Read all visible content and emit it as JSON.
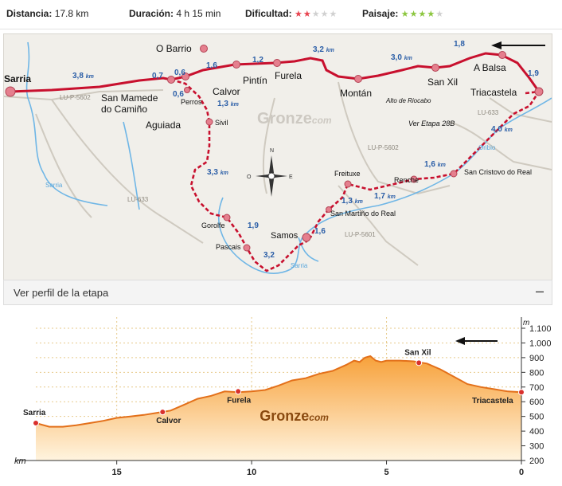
{
  "stats": {
    "distance_label": "Distancia:",
    "distance_value": "17.8 km",
    "duration_label": "Duración:",
    "duration_value": "4 h 15 min",
    "difficulty_label": "Dificultad:",
    "difficulty_rating": 2,
    "landscape_label": "Paisaje:",
    "landscape_rating": 4,
    "max_rating": 5,
    "difficulty_color": "#e8434f",
    "landscape_color": "#8cc63f",
    "empty_star_color": "#d0d0d0"
  },
  "map": {
    "watermark": "Gronze",
    "watermark_suffix": "com",
    "places": {
      "sarria": "Sarria",
      "obarrio": "O Barrio",
      "sanmamede1": "San Mamede",
      "sanmamede2": "do Camiño",
      "aguiada": "Aguiada",
      "perros": "Perros",
      "calvor": "Calvor",
      "pintin": "Pintín",
      "furela": "Furela",
      "montan": "Montán",
      "sanxil": "San Xil",
      "abalsa": "A Balsa",
      "triacastela": "Triacastela",
      "altoriocabo": "Alto de Riocabo",
      "sivil": "Sivil",
      "gorolfe": "Gorolfe",
      "pascais": "Pascais",
      "samos": "Samos",
      "freituxe": "Freituxe",
      "sanmartino": "San Martiño do Real",
      "renche": "Renche",
      "sancristovo": "San Cristovo do Real",
      "veretapa": "Ver Etapa 28B"
    },
    "roads": {
      "lup5602a": "LU-P-5602",
      "lup5602b": "LU-P-5602",
      "lu633a": "LU-633",
      "lu633b": "LU-633",
      "lup5601": "LU-P-5601"
    },
    "rivers": {
      "sarria1": "Sarria",
      "sarria2": "Sarria",
      "oribio": "Oribio"
    },
    "distances": {
      "d1": "3,8",
      "d2": "0,7",
      "d3": "0,6",
      "d4": "1,6",
      "d5": "1,2",
      "d6": "3,2",
      "d7": "3,0",
      "d8": "1,8",
      "d9": "1,9",
      "d10": "4,0",
      "d11": "1,6",
      "d12": "1,7",
      "d13": "1,3",
      "d14": "1,6",
      "d15": "3,2",
      "d16": "1,9",
      "d17": "3,3",
      "d18": "1,3",
      "d19": "0,6"
    },
    "km_unit": "km",
    "compass": {
      "n": "N",
      "e": "E",
      "s": "S",
      "o": "O"
    },
    "route_color": "#c8102e",
    "river_color": "#6fb6e6"
  },
  "profile_toggle": {
    "label": "Ver perfil de la etapa",
    "icon_label": "–"
  },
  "chart_data": {
    "type": "area",
    "x_unit": "km",
    "y_unit": "m",
    "xlim": [
      18,
      0
    ],
    "ylim": [
      200,
      1100
    ],
    "x_ticks": [
      15,
      10,
      5,
      0
    ],
    "y_ticks": [
      200,
      300,
      400,
      500,
      600,
      700,
      800,
      900,
      1000,
      1100
    ],
    "y_tick_labels": [
      "200",
      "300",
      "400",
      "500",
      "600",
      "700",
      "800",
      "900",
      "1.000",
      "1.100"
    ],
    "elevation": {
      "x": [
        18,
        17.5,
        17,
        16.5,
        16,
        15.5,
        15,
        14.5,
        14,
        13.5,
        13,
        12.5,
        12,
        11.5,
        11,
        10.5,
        10,
        9.5,
        9,
        8.5,
        8,
        7.5,
        7,
        6.5,
        6.2,
        6,
        5.8,
        5.6,
        5.4,
        5.2,
        5,
        4.5,
        4,
        3.5,
        3,
        2.5,
        2,
        1.5,
        1,
        0.5,
        0
      ],
      "y": [
        455,
        430,
        430,
        440,
        455,
        470,
        490,
        500,
        510,
        525,
        540,
        580,
        620,
        640,
        670,
        665,
        670,
        680,
        710,
        745,
        760,
        790,
        810,
        850,
        880,
        870,
        900,
        910,
        880,
        870,
        880,
        880,
        875,
        860,
        820,
        770,
        720,
        700,
        685,
        670,
        665
      ]
    },
    "labeled_points": [
      {
        "name": "Sarria",
        "x": 18,
        "y": 455
      },
      {
        "name": "Calvor",
        "x": 13.3,
        "y": 530
      },
      {
        "name": "Furela",
        "x": 10.5,
        "y": 670
      },
      {
        "name": "San Xil",
        "x": 3.8,
        "y": 865
      },
      {
        "name": "Triacastela",
        "x": 0,
        "y": 665
      }
    ],
    "watermark": "Gronze",
    "watermark_suffix": "com",
    "fill_top_color": "#f7a13a",
    "fill_bottom_color": "#fff4df",
    "line_color": "#e3701a",
    "point_color": "#d9302c"
  }
}
